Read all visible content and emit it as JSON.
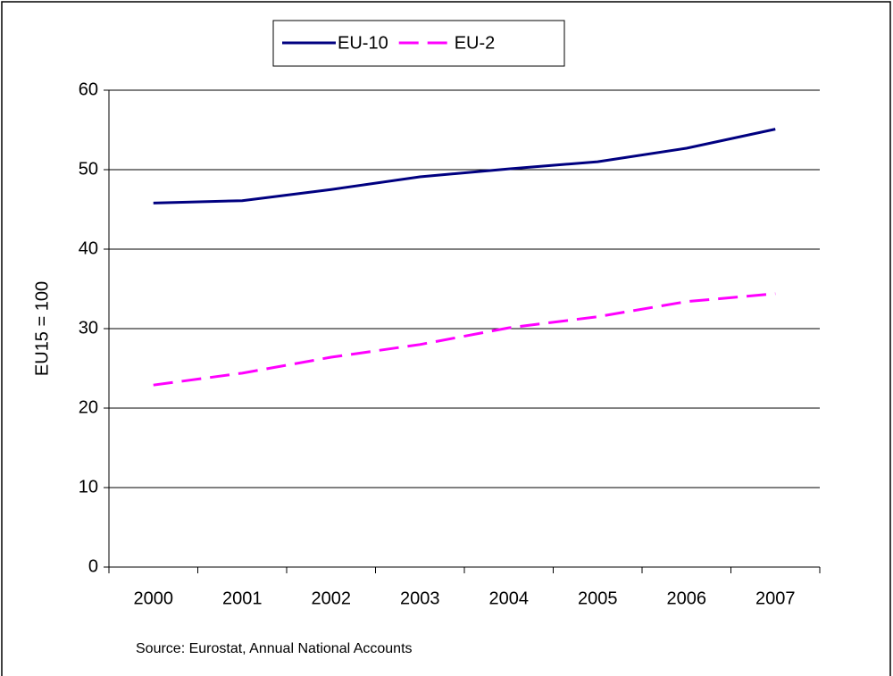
{
  "chart_data": {
    "type": "line",
    "y_label": "EU15 = 100",
    "source": "Source: Eurostat, Annual National Accounts",
    "categories": [
      "2000",
      "2001",
      "2002",
      "2003",
      "2004",
      "2005",
      "2006",
      "2007"
    ],
    "series": [
      {
        "name": "EU-10",
        "color": "#000080",
        "dashed": false,
        "values": [
          45.8,
          46.1,
          47.5,
          49.1,
          50.1,
          51.0,
          52.7,
          55.1
        ]
      },
      {
        "name": "EU-2",
        "color": "#ff00ff",
        "dashed": true,
        "values": [
          22.9,
          24.4,
          26.4,
          28.0,
          30.1,
          31.5,
          33.4,
          34.4
        ]
      }
    ],
    "ylim": [
      0,
      60
    ],
    "yticks": [
      0,
      10,
      20,
      30,
      40,
      50,
      60
    ],
    "grid": true,
    "legend": "top"
  }
}
